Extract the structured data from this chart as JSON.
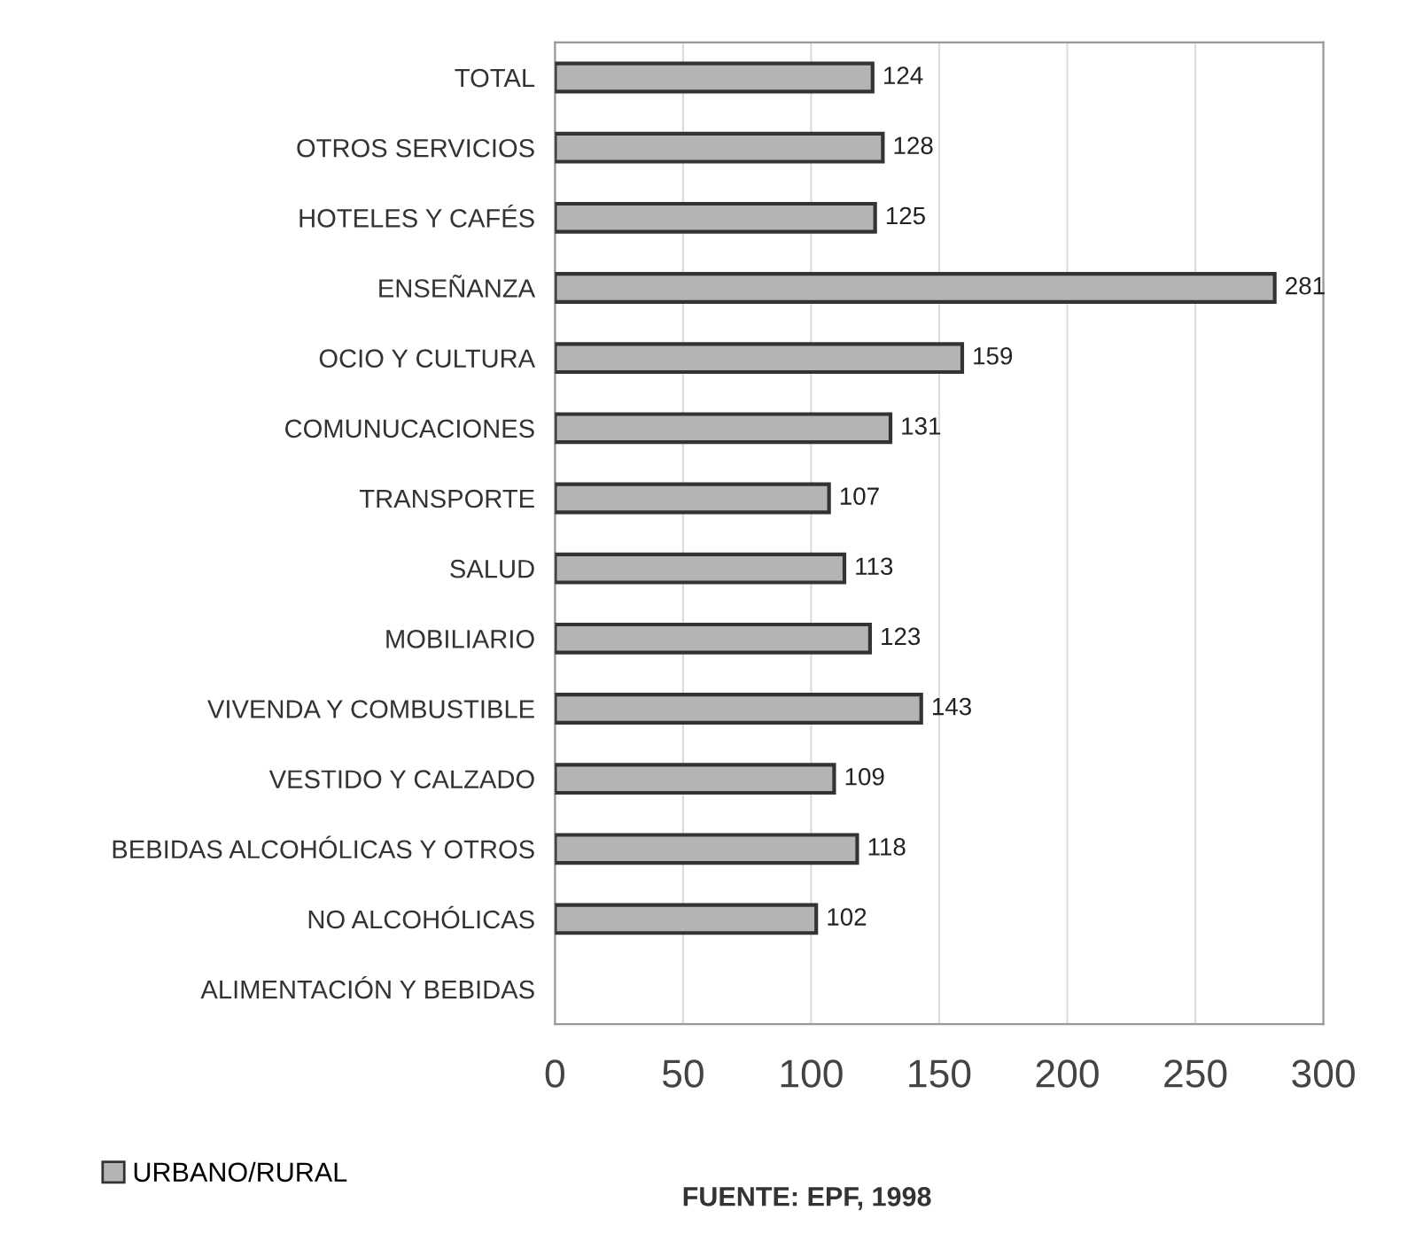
{
  "chart_data": {
    "type": "bar",
    "orientation": "horizontal",
    "categories": [
      "TOTAL",
      "OTROS SERVICIOS",
      "HOTELES Y CAFÉS",
      "ENSEÑANZA",
      "OCIO Y CULTURA",
      "COMUNUCACIONES",
      "TRANSPORTE",
      "SALUD",
      "MOBILIARIO",
      "VIVENDA Y COMBUSTIBLE",
      "VESTIDO Y CALZADO",
      "BEBIDAS ALCOHÓLICAS Y OTROS",
      "NO ALCOHÓLICAS",
      "ALIMENTACIÓN Y BEBIDAS"
    ],
    "series": [
      {
        "name": "URBANO/RURAL",
        "color": "#b4b4b4",
        "values": [
          124,
          128,
          125,
          281,
          159,
          131,
          107,
          113,
          123,
          143,
          109,
          118,
          102,
          null
        ]
      }
    ],
    "data_labels": true,
    "xlim": [
      0,
      300
    ],
    "xticks": [
      0,
      50,
      100,
      150,
      200,
      250,
      300
    ],
    "grid": "x",
    "legend": "bottom left",
    "annotations": [
      "FUENTE: EPF, 1998"
    ]
  }
}
